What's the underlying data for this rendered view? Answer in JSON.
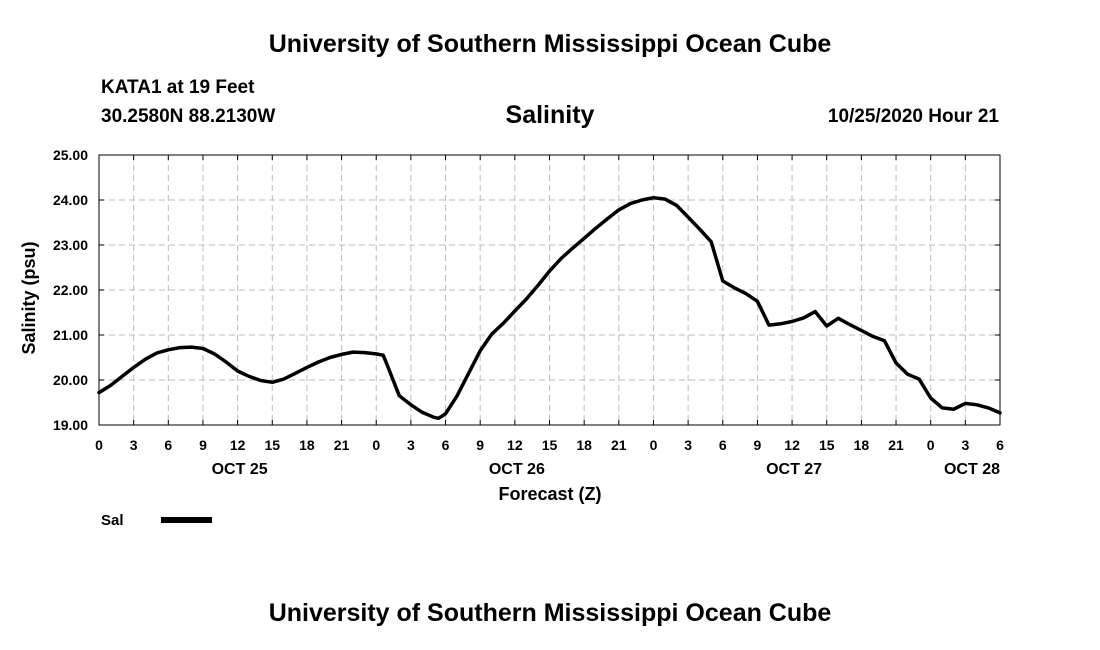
{
  "header": {
    "top_title": "University of Southern Mississippi Ocean Cube",
    "station": "KATA1 at 19 Feet",
    "coords": "30.2580N 88.2130W",
    "timestamp": "10/25/2020 Hour 21",
    "bottom_title": "University of Southern Mississippi Ocean Cube"
  },
  "colors": {
    "line": "#000000",
    "grid": "#bbbbbb"
  },
  "chart_data": {
    "type": "line",
    "title": "Salinity",
    "xlabel": "Forecast (Z)",
    "ylabel": "Salinity (psu)",
    "ylim": [
      19.0,
      25.0
    ],
    "yticks": [
      "19.00",
      "20.00",
      "21.00",
      "22.00",
      "23.00",
      "24.00",
      "25.00"
    ],
    "xlim_hours": [
      0,
      78
    ],
    "xtick_labels": [
      "0",
      "3",
      "6",
      "9",
      "12",
      "15",
      "18",
      "21",
      "0",
      "3",
      "6",
      "9",
      "12",
      "15",
      "18",
      "21",
      "0",
      "3",
      "6",
      "9",
      "12",
      "15",
      "18",
      "21",
      "0",
      "3",
      "6"
    ],
    "date_labels": [
      {
        "label": "OCT 25",
        "hour": 12
      },
      {
        "label": "OCT 26",
        "hour": 36
      },
      {
        "label": "OCT 27",
        "hour": 60
      },
      {
        "label": "OCT 28",
        "hour": 78
      }
    ],
    "grid": true,
    "legend": {
      "label": "Sal",
      "position": "below-left"
    },
    "series": [
      {
        "name": "Sal",
        "x": [
          0,
          1,
          2,
          3,
          4,
          5,
          6,
          7,
          8,
          9,
          10,
          11,
          12,
          13,
          14,
          15,
          16,
          17,
          18,
          19,
          20,
          21,
          22,
          23,
          24,
          24.6,
          25,
          26,
          27,
          28,
          29,
          29.4,
          30,
          31,
          32,
          33,
          34,
          35,
          36,
          37,
          38,
          39,
          40,
          41,
          42,
          43,
          44,
          45,
          46,
          47,
          48,
          49,
          50,
          51,
          52,
          53,
          54,
          55,
          56,
          57,
          58,
          59,
          60,
          61,
          62,
          63,
          64,
          65,
          66,
          67,
          68,
          69,
          70,
          71,
          72,
          73,
          74,
          75,
          76,
          77,
          78
        ],
        "values": [
          19.72,
          19.88,
          20.08,
          20.28,
          20.46,
          20.6,
          20.67,
          20.72,
          20.73,
          20.7,
          20.58,
          20.4,
          20.2,
          20.08,
          19.99,
          19.95,
          20.02,
          20.15,
          20.28,
          20.4,
          20.5,
          20.57,
          20.62,
          20.61,
          20.58,
          20.55,
          20.3,
          19.65,
          19.45,
          19.28,
          19.17,
          19.15,
          19.25,
          19.65,
          20.15,
          20.65,
          21.02,
          21.26,
          21.53,
          21.8,
          22.1,
          22.42,
          22.7,
          22.93,
          23.15,
          23.37,
          23.58,
          23.78,
          23.92,
          24.0,
          24.05,
          24.02,
          23.88,
          23.62,
          23.35,
          23.07,
          22.2,
          22.05,
          21.92,
          21.75,
          21.22,
          21.25,
          21.3,
          21.38,
          21.52,
          21.2,
          21.37,
          21.23,
          21.1,
          20.97,
          20.87,
          20.38,
          20.13,
          20.02,
          19.6,
          19.38,
          19.35,
          19.48,
          19.45,
          19.38,
          19.27
        ]
      }
    ]
  }
}
